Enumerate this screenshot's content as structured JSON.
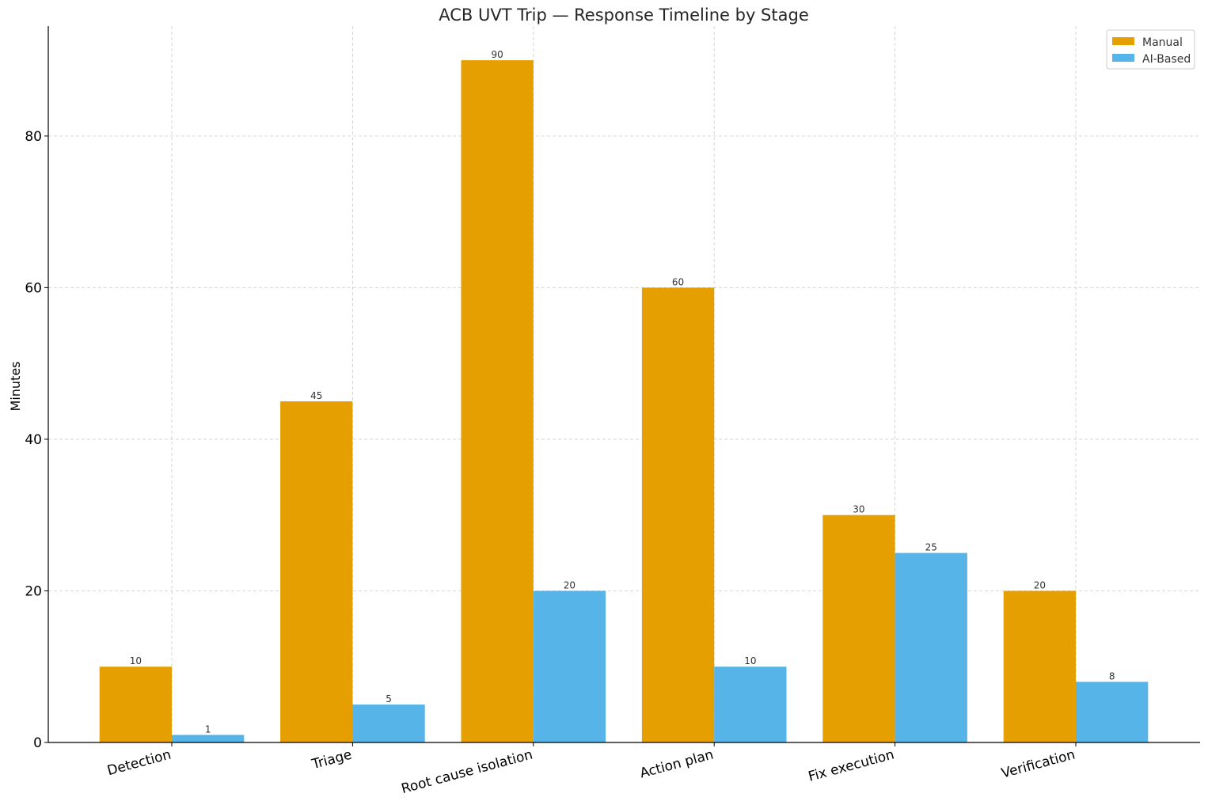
{
  "chart_data": {
    "type": "bar",
    "title": "ACB UVT Trip — Response Timeline by Stage",
    "xlabel": "",
    "ylabel": "Minutes",
    "categories": [
      "Detection",
      "Triage",
      "Root cause isolation",
      "Action plan",
      "Fix execution",
      "Verification"
    ],
    "series": [
      {
        "name": "Manual",
        "color": "#E69F00",
        "values": [
          10,
          45,
          90,
          60,
          30,
          20
        ]
      },
      {
        "name": "AI-Based",
        "color": "#56B4E9",
        "values": [
          1,
          5,
          20,
          10,
          25,
          8
        ]
      }
    ],
    "ylim": [
      0,
      94.5
    ],
    "yticks": [
      0,
      20,
      40,
      60,
      80
    ],
    "grid": true,
    "legend_position": "top-right"
  }
}
